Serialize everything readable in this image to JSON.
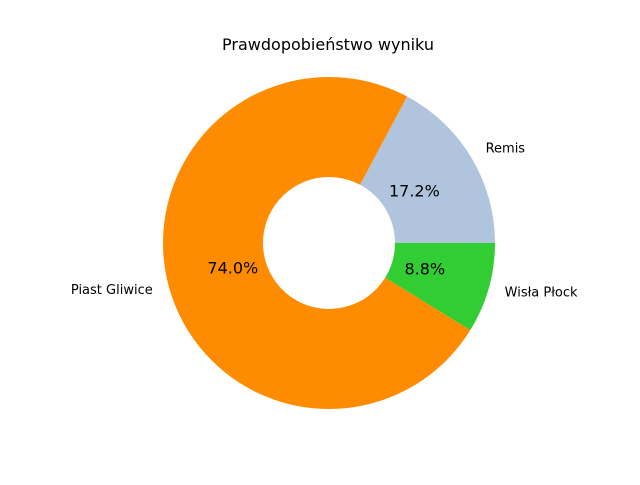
{
  "chart_data": {
    "type": "pie",
    "title": "Prawdopobieństwo wyniku",
    "donut": true,
    "slices": [
      {
        "label": "Remis",
        "value": 17.2,
        "percent_label": "17.2%",
        "color": "#b0c4de"
      },
      {
        "label": "Piast Gliwice",
        "value": 74.0,
        "percent_label": "74.0%",
        "color": "#ff8c00"
      },
      {
        "label": "Wisła Płock",
        "value": 8.8,
        "percent_label": "8.8%",
        "color": "#32cd32"
      }
    ]
  }
}
